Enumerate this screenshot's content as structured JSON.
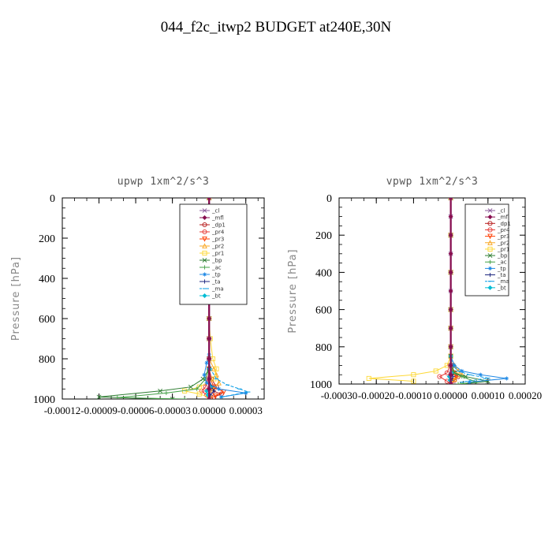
{
  "figure_title": "044_f2c_itwp2  BUDGET at240E,30N",
  "chart_data": [
    {
      "type": "line",
      "title": "upwp   1xm^2/s^3",
      "ylabel": "Pressure [hPa]",
      "ylim": [
        1000,
        0
      ],
      "xlim": [
        -0.00012,
        4.5e-05
      ],
      "yticks": [
        "0",
        "200",
        "400",
        "600",
        "800",
        "1000"
      ],
      "xticks": [
        "-0.00012",
        "-0.00009",
        "-0.00006",
        "-0.00003",
        "0.00000",
        "0.00003"
      ],
      "xtick_values": [
        -0.00012,
        -9e-05,
        -6e-05,
        -3e-05,
        0.0,
        3e-05
      ],
      "legend_position": "top-right",
      "series": [
        {
          "name": "_cl",
          "color": "#8b5a9b",
          "marker": "x",
          "x": [
            0,
            0,
            0,
            0,
            0,
            0,
            0,
            0,
            0,
            0,
            0,
            0
          ],
          "y": [
            0,
            100,
            200,
            300,
            400,
            500,
            600,
            700,
            800,
            900,
            950,
            1000
          ]
        },
        {
          "name": "_mfl",
          "color": "#880e4f",
          "marker": "diamond",
          "x": [
            0,
            0,
            0,
            0,
            0,
            0,
            0,
            0,
            0,
            0,
            0,
            0
          ],
          "y": [
            0,
            100,
            200,
            300,
            400,
            500,
            600,
            700,
            800,
            900,
            950,
            1000
          ]
        },
        {
          "name": "_dp1",
          "color": "#b71c1c",
          "marker": "circle",
          "x": [
            0,
            0,
            0,
            0,
            0,
            0,
            0,
            2e-06,
            6e-06,
            3e-06,
            1e-05,
            4e-06
          ],
          "y": [
            0,
            200,
            400,
            600,
            700,
            800,
            850,
            900,
            940,
            960,
            975,
            990
          ]
        },
        {
          "name": "_pr4",
          "color": "#e53935",
          "marker": "circle",
          "x": [
            0,
            0,
            0,
            0,
            0,
            0,
            0,
            -1e-06,
            -3e-06,
            -6e-06,
            -2e-06,
            0
          ],
          "y": [
            0,
            200,
            400,
            600,
            700,
            800,
            850,
            900,
            940,
            960,
            980,
            1000
          ]
        },
        {
          "name": "_pr3",
          "color": "#ff3d00",
          "marker": "triangle-down",
          "x": [
            0,
            0,
            0,
            0,
            0,
            0,
            0,
            1e-06,
            4e-06,
            1.2e-05,
            5e-06,
            0
          ],
          "y": [
            0,
            200,
            400,
            600,
            700,
            800,
            850,
            900,
            940,
            965,
            985,
            1000
          ]
        },
        {
          "name": "_pr2",
          "color": "#f9a825",
          "marker": "triangle-up",
          "x": [
            0,
            0,
            0,
            0,
            0,
            0,
            4e-06,
            6e-06,
            8e-06,
            3e-06,
            0,
            0
          ],
          "y": [
            0,
            200,
            400,
            600,
            700,
            800,
            850,
            880,
            920,
            950,
            975,
            1000
          ]
        },
        {
          "name": "_pr1",
          "color": "#fdd835",
          "marker": "square",
          "x": [
            0,
            0,
            0,
            0,
            1e-06,
            3e-06,
            6e-06,
            4e-06,
            -8e-06,
            -2e-05,
            -8e-06,
            0
          ],
          "y": [
            0,
            200,
            400,
            600,
            700,
            800,
            850,
            900,
            940,
            960,
            975,
            990
          ]
        },
        {
          "name": "_bp",
          "color": "#2e7d32",
          "marker": "x",
          "x": [
            0,
            0,
            0,
            0,
            0,
            0,
            0,
            -5e-06,
            -1.5e-05,
            -4e-05,
            -9e-05,
            -3e-05
          ],
          "y": [
            0,
            200,
            400,
            600,
            700,
            800,
            850,
            900,
            940,
            960,
            990,
            1000
          ]
        },
        {
          "name": "_ac",
          "color": "#43a047",
          "marker": "plus",
          "x": [
            0,
            0,
            0,
            0,
            0,
            0,
            0,
            -3e-06,
            -1e-05,
            -3.5e-05,
            -7.5e-05,
            -2e-05
          ],
          "y": [
            0,
            200,
            400,
            600,
            700,
            800,
            850,
            900,
            950,
            970,
            993,
            1000
          ]
        },
        {
          "name": "_tp",
          "color": "#1e88e5",
          "marker": "asterisk",
          "x": [
            0,
            0,
            0,
            0,
            0,
            0,
            -2e-06,
            -4e-06,
            -2e-06,
            8e-06,
            3e-05,
            1e-05
          ],
          "y": [
            0,
            200,
            400,
            600,
            700,
            780,
            820,
            880,
            920,
            950,
            970,
            990
          ]
        },
        {
          "name": "_ta",
          "color": "#1a237e",
          "marker": "plus",
          "x": [
            0,
            0,
            0,
            0,
            0,
            0,
            0,
            0,
            2e-06,
            4e-06,
            1e-06,
            0
          ],
          "y": [
            0,
            200,
            400,
            600,
            700,
            800,
            850,
            900,
            940,
            960,
            980,
            1000
          ]
        },
        {
          "name": "_ma",
          "color": "#039be5",
          "marker": "dash",
          "x": [
            0,
            0,
            0,
            0,
            0,
            0,
            1e-06,
            6e-06,
            1.5e-05,
            2.5e-05,
            3.2e-05,
            1e-05
          ],
          "y": [
            0,
            200,
            400,
            600,
            700,
            800,
            850,
            900,
            930,
            950,
            965,
            990
          ]
        },
        {
          "name": "_bt",
          "color": "#00bcd4",
          "marker": "diamond",
          "x": [
            0,
            0,
            0,
            0,
            0,
            0,
            0,
            0,
            1e-06,
            -2e-06,
            -1e-06,
            0
          ],
          "y": [
            0,
            200,
            400,
            600,
            700,
            800,
            850,
            900,
            940,
            960,
            980,
            1000
          ]
        }
      ]
    },
    {
      "type": "line",
      "title": "vpwp   1xm^2/s^3",
      "ylabel": "Pressure [hPa]",
      "ylim": [
        1000,
        0
      ],
      "xlim": [
        -0.0003,
        0.0002
      ],
      "yticks": [
        "0",
        "200",
        "400",
        "600",
        "800",
        "1000"
      ],
      "xticks": [
        "-0.00030",
        "-0.00020",
        "-0.00010",
        "0.00000",
        "0.00010",
        "0.00020"
      ],
      "xtick_values": [
        -0.0003,
        -0.0002,
        -0.0001,
        0.0,
        0.0001,
        0.0002
      ],
      "legend_position": "top-right",
      "series": [
        {
          "name": "_cl",
          "color": "#8b5a9b",
          "marker": "x",
          "x": [
            0,
            0,
            0,
            0,
            0,
            0,
            0,
            0,
            0,
            0,
            0,
            0
          ],
          "y": [
            0,
            100,
            200,
            300,
            400,
            500,
            600,
            700,
            800,
            900,
            950,
            1000
          ]
        },
        {
          "name": "_mfl",
          "color": "#880e4f",
          "marker": "diamond",
          "x": [
            0,
            0,
            0,
            0,
            0,
            0,
            0,
            0,
            0,
            0,
            0,
            0
          ],
          "y": [
            0,
            100,
            200,
            300,
            400,
            500,
            600,
            700,
            800,
            900,
            950,
            1000
          ]
        },
        {
          "name": "_dp1",
          "color": "#b71c1c",
          "marker": "circle",
          "x": [
            0,
            0,
            0,
            0,
            0,
            0,
            0,
            3e-06,
            1e-05,
            2e-05,
            1e-05,
            0
          ],
          "y": [
            0,
            200,
            400,
            600,
            700,
            800,
            850,
            900,
            940,
            960,
            980,
            1000
          ]
        },
        {
          "name": "_pr4",
          "color": "#e53935",
          "marker": "circle",
          "x": [
            0,
            0,
            0,
            0,
            0,
            0,
            0,
            -2e-06,
            -1e-05,
            -3e-05,
            -1e-05,
            0
          ],
          "y": [
            0,
            200,
            400,
            600,
            700,
            800,
            850,
            900,
            940,
            960,
            985,
            1000
          ]
        },
        {
          "name": "_pr3",
          "color": "#ff3d00",
          "marker": "triangle-down",
          "x": [
            0,
            0,
            0,
            0,
            0,
            0,
            0,
            2e-06,
            6e-06,
            1.5e-05,
            5e-06,
            0
          ],
          "y": [
            0,
            200,
            400,
            600,
            700,
            800,
            850,
            900,
            940,
            960,
            985,
            1000
          ]
        },
        {
          "name": "_pr2",
          "color": "#f9a825",
          "marker": "triangle-up",
          "x": [
            0,
            0,
            0,
            0,
            0,
            0,
            0,
            1e-05,
            2e-05,
            3e-05,
            1e-05,
            0
          ],
          "y": [
            0,
            200,
            400,
            600,
            700,
            800,
            850,
            900,
            930,
            950,
            975,
            1000
          ]
        },
        {
          "name": "_pr1",
          "color": "#fdd835",
          "marker": "square",
          "x": [
            0,
            0,
            0,
            0,
            0,
            0,
            0,
            -1e-05,
            -4e-05,
            -0.0001,
            -0.00022,
            -0.0001
          ],
          "y": [
            0,
            200,
            400,
            600,
            700,
            800,
            850,
            900,
            930,
            950,
            970,
            985
          ]
        },
        {
          "name": "_bp",
          "color": "#2e7d32",
          "marker": "x",
          "x": [
            0,
            0,
            0,
            0,
            0,
            0,
            0,
            3e-06,
            1e-05,
            4e-05,
            0.0001,
            3e-05
          ],
          "y": [
            0,
            200,
            400,
            600,
            700,
            800,
            850,
            900,
            940,
            960,
            985,
            1000
          ]
        },
        {
          "name": "_ac",
          "color": "#43a047",
          "marker": "plus",
          "x": [
            0,
            0,
            0,
            0,
            0,
            0,
            0,
            2e-06,
            8e-06,
            3e-05,
            7e-05,
            2e-05
          ],
          "y": [
            0,
            200,
            400,
            600,
            700,
            800,
            850,
            900,
            940,
            960,
            990,
            1000
          ]
        },
        {
          "name": "_tp",
          "color": "#1e88e5",
          "marker": "asterisk",
          "x": [
            0,
            0,
            0,
            0,
            0,
            0,
            0,
            1e-05,
            3e-05,
            8e-05,
            0.00015,
            5e-05
          ],
          "y": [
            0,
            200,
            400,
            600,
            700,
            800,
            850,
            900,
            930,
            950,
            970,
            990
          ]
        },
        {
          "name": "_ta",
          "color": "#1a237e",
          "marker": "plus",
          "x": [
            0,
            0,
            0,
            0,
            0,
            0,
            0,
            0,
            3e-06,
            6e-06,
            2e-06,
            0
          ],
          "y": [
            0,
            200,
            400,
            600,
            700,
            800,
            850,
            900,
            940,
            960,
            980,
            1000
          ]
        },
        {
          "name": "_ma",
          "color": "#039be5",
          "marker": "dash",
          "x": [
            0,
            0,
            0,
            0,
            0,
            0,
            0,
            5e-06,
            2e-05,
            5e-05,
            0.0001,
            3e-05
          ],
          "y": [
            0,
            200,
            400,
            600,
            700,
            800,
            850,
            900,
            930,
            950,
            968,
            990
          ]
        },
        {
          "name": "_bt",
          "color": "#00bcd4",
          "marker": "diamond",
          "x": [
            0,
            0,
            0,
            0,
            0,
            0,
            0,
            0,
            2e-06,
            -4e-06,
            -2e-06,
            0
          ],
          "y": [
            0,
            200,
            400,
            600,
            700,
            800,
            850,
            900,
            940,
            960,
            980,
            1000
          ]
        }
      ]
    }
  ]
}
